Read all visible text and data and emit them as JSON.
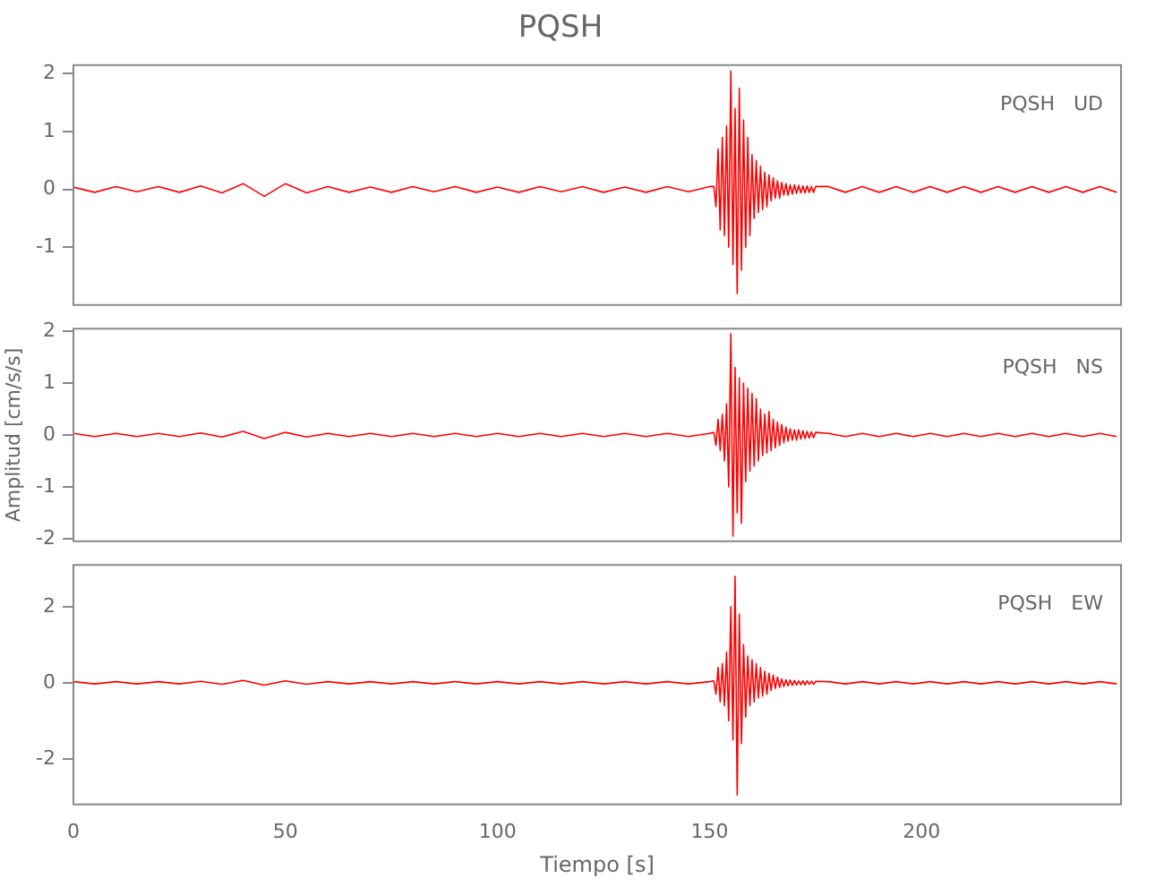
{
  "chart_data": [
    {
      "type": "line",
      "title": "PQSH",
      "annotations": [
        "PQSH   UD"
      ],
      "tick_labels": "y",
      "xlim": [
        0,
        247
      ],
      "ylim": [
        -2,
        2.15
      ],
      "yticks": [
        -1,
        0,
        1,
        2
      ],
      "x": [
        0,
        5,
        10,
        15,
        20,
        25,
        30,
        35,
        40,
        45,
        50,
        55,
        60,
        65,
        70,
        75,
        80,
        85,
        90,
        95,
        100,
        105,
        110,
        115,
        120,
        125,
        130,
        135,
        140,
        145,
        150,
        151,
        151.5,
        152,
        152.5,
        153,
        153.5,
        154,
        154.5,
        155,
        155.5,
        156,
        156.5,
        157,
        157.5,
        158,
        158.5,
        159,
        159.5,
        160,
        160.5,
        161,
        161.5,
        162,
        162.5,
        163,
        163.5,
        164,
        164.5,
        165,
        165.5,
        166,
        166.5,
        167,
        167.5,
        168,
        168.5,
        169,
        169.5,
        170,
        170.5,
        171,
        171.5,
        172,
        172.5,
        173,
        173.5,
        174,
        174.5,
        175,
        178,
        182,
        186,
        190,
        194,
        198,
        202,
        206,
        210,
        214,
        218,
        222,
        226,
        230,
        234,
        238,
        242,
        246
      ],
      "series": [
        {
          "color": "#ff0000",
          "values": [
            0.04,
            -0.05,
            0.05,
            -0.04,
            0.05,
            -0.05,
            0.06,
            -0.06,
            0.1,
            -0.12,
            0.1,
            -0.06,
            0.05,
            -0.05,
            0.04,
            -0.05,
            0.05,
            -0.04,
            0.05,
            -0.05,
            0.04,
            -0.05,
            0.05,
            -0.04,
            0.05,
            -0.05,
            0.04,
            -0.05,
            0.05,
            -0.04,
            0.05,
            0.05,
            -0.3,
            0.7,
            -0.7,
            0.9,
            -0.8,
            1.1,
            -1.0,
            2.05,
            -1.3,
            1.4,
            -1.8,
            1.75,
            -1.4,
            1.2,
            -1.0,
            0.9,
            -0.8,
            0.6,
            -0.5,
            0.5,
            -0.4,
            0.4,
            -0.35,
            0.3,
            -0.3,
            0.25,
            -0.2,
            0.2,
            -0.15,
            0.15,
            -0.15,
            0.12,
            -0.1,
            0.1,
            -0.1,
            0.08,
            -0.08,
            0.08,
            -0.07,
            0.07,
            -0.06,
            0.06,
            -0.06,
            0.06,
            -0.05,
            0.05,
            -0.05,
            0.05,
            0.05,
            -0.05,
            0.05,
            -0.05,
            0.05,
            -0.05,
            0.05,
            -0.05,
            0.05,
            -0.05,
            0.05,
            -0.05,
            0.05,
            -0.05,
            0.05,
            -0.05,
            0.05,
            -0.05
          ]
        }
      ]
    },
    {
      "type": "line",
      "ylabel": "Amplitud [cm/s/s]",
      "annotations": [
        "PQSH   NS"
      ],
      "tick_labels": "y",
      "xlim": [
        0,
        247
      ],
      "ylim": [
        -2.05,
        2.05
      ],
      "yticks": [
        -2,
        -1,
        0,
        1,
        2
      ],
      "x": [
        0,
        5,
        10,
        15,
        20,
        25,
        30,
        35,
        40,
        45,
        50,
        55,
        60,
        65,
        70,
        75,
        80,
        85,
        90,
        95,
        100,
        105,
        110,
        115,
        120,
        125,
        130,
        135,
        140,
        145,
        150,
        151,
        151.5,
        152,
        152.5,
        153,
        153.5,
        154,
        154.5,
        155,
        155.5,
        156,
        156.5,
        157,
        157.5,
        158,
        158.5,
        159,
        159.5,
        160,
        160.5,
        161,
        161.5,
        162,
        162.5,
        163,
        163.5,
        164,
        164.5,
        165,
        165.5,
        166,
        166.5,
        167,
        167.5,
        168,
        168.5,
        169,
        169.5,
        170,
        170.5,
        171,
        171.5,
        172,
        172.5,
        173,
        173.5,
        174,
        174.5,
        175,
        178,
        182,
        186,
        190,
        194,
        198,
        202,
        206,
        210,
        214,
        218,
        222,
        226,
        230,
        234,
        238,
        242,
        246
      ],
      "series": [
        {
          "color": "#ff0000",
          "values": [
            0.03,
            -0.03,
            0.03,
            -0.03,
            0.03,
            -0.03,
            0.04,
            -0.04,
            0.07,
            -0.07,
            0.05,
            -0.04,
            0.03,
            -0.03,
            0.03,
            -0.03,
            0.03,
            -0.03,
            0.03,
            -0.03,
            0.03,
            -0.03,
            0.03,
            -0.03,
            0.03,
            -0.03,
            0.03,
            -0.03,
            0.03,
            -0.03,
            0.03,
            0.05,
            -0.2,
            0.3,
            -0.3,
            0.4,
            -0.5,
            0.6,
            -1.0,
            1.95,
            -1.95,
            1.3,
            -1.5,
            1.1,
            -1.7,
            1.0,
            -0.9,
            0.9,
            -0.7,
            0.8,
            -0.6,
            0.7,
            -0.5,
            0.5,
            -0.4,
            0.4,
            -0.35,
            0.45,
            -0.3,
            0.3,
            -0.25,
            0.25,
            -0.2,
            0.2,
            -0.15,
            0.15,
            -0.12,
            0.12,
            -0.1,
            0.1,
            -0.1,
            0.1,
            -0.08,
            0.08,
            -0.07,
            0.07,
            -0.06,
            0.06,
            -0.05,
            0.05,
            0.03,
            -0.03,
            0.03,
            -0.03,
            0.03,
            -0.03,
            0.03,
            -0.03,
            0.03,
            -0.03,
            0.03,
            -0.03,
            0.03,
            -0.03,
            0.03,
            -0.03,
            0.03,
            -0.03
          ]
        }
      ]
    },
    {
      "type": "line",
      "xlabel": "Tiempo [s]",
      "annotations": [
        "PQSH   EW"
      ],
      "xlim": [
        0,
        247
      ],
      "xticks": [
        0,
        50,
        100,
        150,
        200
      ],
      "ylim": [
        -3.2,
        3.1
      ],
      "yticks": [
        -2,
        0,
        2
      ],
      "x": [
        0,
        5,
        10,
        15,
        20,
        25,
        30,
        35,
        40,
        45,
        50,
        55,
        60,
        65,
        70,
        75,
        80,
        85,
        90,
        95,
        100,
        105,
        110,
        115,
        120,
        125,
        130,
        135,
        140,
        145,
        150,
        151,
        151.5,
        152,
        152.5,
        153,
        153.5,
        154,
        154.5,
        155,
        155.5,
        156,
        156.5,
        157,
        157.5,
        158,
        158.5,
        159,
        159.5,
        160,
        160.5,
        161,
        161.5,
        162,
        162.5,
        163,
        163.5,
        164,
        164.5,
        165,
        165.5,
        166,
        166.5,
        167,
        167.5,
        168,
        168.5,
        169,
        169.5,
        170,
        170.5,
        171,
        171.5,
        172,
        172.5,
        173,
        173.5,
        174,
        174.5,
        175,
        178,
        182,
        186,
        190,
        194,
        198,
        202,
        206,
        210,
        214,
        218,
        222,
        226,
        230,
        234,
        238,
        242,
        246
      ],
      "series": [
        {
          "color": "#ff0000",
          "values": [
            0.03,
            -0.03,
            0.03,
            -0.03,
            0.03,
            -0.03,
            0.04,
            -0.04,
            0.06,
            -0.06,
            0.05,
            -0.04,
            0.03,
            -0.03,
            0.03,
            -0.03,
            0.03,
            -0.03,
            0.03,
            -0.03,
            0.03,
            -0.03,
            0.03,
            -0.03,
            0.03,
            -0.03,
            0.03,
            -0.03,
            0.03,
            -0.03,
            0.03,
            0.05,
            -0.3,
            0.4,
            -0.5,
            0.5,
            -0.6,
            0.8,
            -1.0,
            2.0,
            -1.5,
            2.8,
            -2.95,
            1.8,
            -1.6,
            1.0,
            -0.9,
            0.7,
            -0.6,
            0.6,
            -0.5,
            0.5,
            -0.4,
            0.4,
            -0.35,
            0.3,
            -0.3,
            0.25,
            -0.2,
            0.2,
            -0.15,
            0.15,
            -0.12,
            0.1,
            -0.1,
            0.08,
            -0.08,
            0.07,
            -0.07,
            0.06,
            -0.06,
            0.05,
            -0.05,
            0.05,
            -0.05,
            0.05,
            -0.04,
            0.04,
            -0.04,
            0.04,
            0.03,
            -0.03,
            0.03,
            -0.03,
            0.03,
            -0.03,
            0.03,
            -0.03,
            0.03,
            -0.03,
            0.03,
            -0.03,
            0.03,
            -0.03,
            0.03,
            -0.03,
            0.03,
            -0.03
          ]
        }
      ]
    }
  ]
}
